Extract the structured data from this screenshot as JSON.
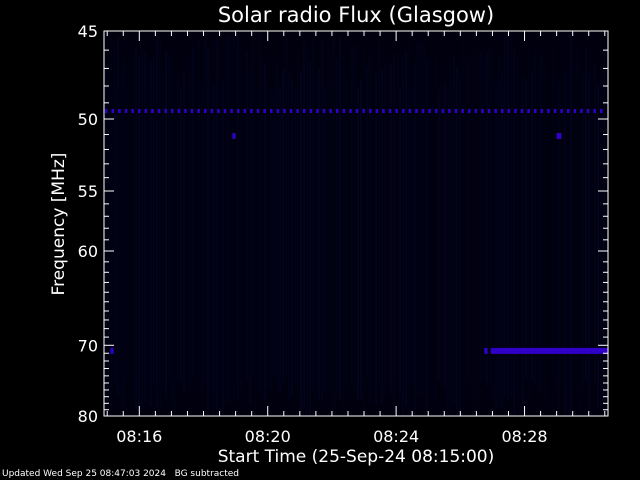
{
  "chart_data": {
    "type": "heatmap",
    "title": "Solar radio Flux (Glasgow)",
    "xlabel": "Start Time (25-Sep-24 08:15:00)",
    "ylabel": "Frequency [MHz]",
    "x_unit": "minutes after 08:15:00",
    "xlim": [
      -0.1,
      15.6
    ],
    "x_ticks": [
      {
        "value": 1,
        "label": "08:16"
      },
      {
        "value": 5,
        "label": "08:20"
      },
      {
        "value": 9,
        "label": "08:24"
      },
      {
        "value": 13,
        "label": "08:28"
      }
    ],
    "y_scale": "reciprocal",
    "ylim": [
      45,
      80
    ],
    "y_ticks": [
      45,
      50,
      55,
      60,
      70,
      80
    ],
    "features": [
      {
        "name": "narrowband interference line",
        "freq_mhz": 49.5,
        "x_start": -0.1,
        "x_end": 15.6,
        "dashed": true
      },
      {
        "name": "spot",
        "freq_mhz": 51.1,
        "x_start": 3.9,
        "x_end": 4.0
      },
      {
        "name": "spot",
        "freq_mhz": 51.1,
        "x_start": 14.0,
        "x_end": 14.15
      },
      {
        "name": "spot",
        "freq_mhz": 70.7,
        "x_start": 0.1,
        "x_end": 0.2
      },
      {
        "name": "spot",
        "freq_mhz": 70.7,
        "x_start": 11.75,
        "x_end": 11.85
      },
      {
        "name": "interference band",
        "freq_mhz": 70.7,
        "x_start": 11.95,
        "x_end": 15.6
      }
    ],
    "background_color": "#00000f",
    "signal_color": "#3000c8"
  },
  "footer": {
    "updated": "Updated Wed Sep 25 08:47:03 2024",
    "bg_note": "BG subtracted"
  }
}
